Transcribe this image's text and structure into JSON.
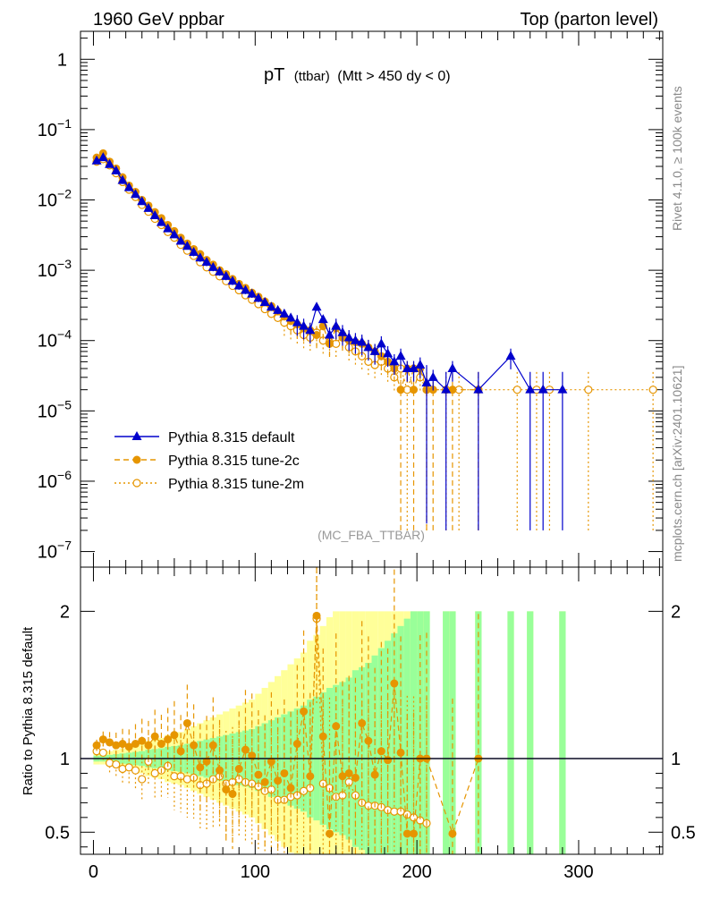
{
  "header": {
    "left": "1960 GeV ppbar",
    "right": "Top (parton level)"
  },
  "side_labels": {
    "rivet": "Rivet 4.1.0, ≥ 100k events",
    "mcplots": "mcplots.cern.ch [arXiv:2401.10621]"
  },
  "plot_title": {
    "main": "pT",
    "small": "(ttbar)",
    "cut": "(Mtt > 450 dy < 0)"
  },
  "watermark": "(MC_FBA_TTBAR)",
  "legend": [
    {
      "label": "Pythia 8.315 default",
      "color": "#0000cc",
      "style": "solid",
      "marker": "triangle"
    },
    {
      "label": "Pythia 8.315 tune-2c",
      "color": "#e69500",
      "style": "dashed",
      "marker": "filled-circle"
    },
    {
      "label": "Pythia 8.315 tune-2m",
      "color": "#e69500",
      "style": "dotted",
      "marker": "open-circle"
    }
  ],
  "colors": {
    "default": "#0000cc",
    "tune": "#e69500",
    "band_outer": "#ffff99",
    "band_inner": "#99ff99"
  },
  "chart_data": [
    {
      "type": "line",
      "title": "pT (ttbar) (Mtt > 450 dy < 0)",
      "xlim": [
        -8,
        352
      ],
      "ylim": [
        6e-08,
        2.5
      ],
      "yscale": "log",
      "y_ticks": [
        {
          "v": 1,
          "base": "1",
          "exp": ""
        },
        {
          "v": 0.1,
          "base": "10",
          "exp": "−1"
        },
        {
          "v": 0.01,
          "base": "10",
          "exp": "−2"
        },
        {
          "v": 0.001,
          "base": "10",
          "exp": "−3"
        },
        {
          "v": 0.0001,
          "base": "10",
          "exp": "−4"
        },
        {
          "v": 1e-05,
          "base": "10",
          "exp": "−5"
        },
        {
          "v": 1e-06,
          "base": "10",
          "exp": "−6"
        },
        {
          "v": 1e-07,
          "base": "10",
          "exp": "−7"
        }
      ],
      "series": [
        {
          "name": "Pythia 8.315 default",
          "x": [
            2,
            6,
            10,
            14,
            18,
            22,
            26,
            30,
            34,
            38,
            42,
            46,
            50,
            54,
            58,
            62,
            66,
            70,
            74,
            78,
            82,
            86,
            90,
            94,
            98,
            102,
            106,
            110,
            114,
            118,
            122,
            126,
            130,
            134,
            138,
            142,
            146,
            150,
            154,
            158,
            162,
            166,
            170,
            174,
            178,
            182,
            186,
            190,
            194,
            198,
            202,
            206,
            210,
            218,
            222,
            238,
            258,
            270,
            278,
            290
          ],
          "y": [
            0.036,
            0.04,
            0.032,
            0.026,
            0.019,
            0.015,
            0.012,
            0.0095,
            0.0076,
            0.006,
            0.0048,
            0.0039,
            0.0032,
            0.0026,
            0.0022,
            0.0018,
            0.0015,
            0.0013,
            0.0011,
            0.00095,
            0.00082,
            0.0007,
            0.0006,
            0.00052,
            0.00046,
            0.0004,
            0.00035,
            0.0003,
            0.00027,
            0.00024,
            0.00021,
            0.00018,
            0.00016,
            0.00014,
            0.0003,
            0.0002,
            0.00012,
            0.00016,
            0.00013,
            0.00011,
            0.0001,
            9.5e-05,
            8e-05,
            7e-05,
            9e-05,
            6.5e-05,
            5e-05,
            6e-05,
            4e-05,
            4e-05,
            4.5e-05,
            2.5e-05,
            3e-05,
            2e-05,
            4e-05,
            2e-05,
            6e-05,
            2e-05,
            2e-05,
            2e-05
          ]
        },
        {
          "name": "Pythia 8.315 tune-2c",
          "x": [
            2,
            6,
            10,
            14,
            18,
            22,
            26,
            30,
            34,
            38,
            42,
            46,
            50,
            54,
            58,
            62,
            66,
            70,
            74,
            78,
            82,
            86,
            90,
            94,
            98,
            102,
            106,
            110,
            114,
            118,
            122,
            126,
            130,
            134,
            138,
            142,
            146,
            150,
            154,
            158,
            162,
            166,
            170,
            174,
            178,
            182,
            186,
            190,
            194,
            198,
            202,
            206,
            210,
            222,
            238
          ],
          "y": [
            0.04,
            0.046,
            0.035,
            0.028,
            0.021,
            0.016,
            0.013,
            0.01,
            0.0083,
            0.0067,
            0.0055,
            0.0044,
            0.0036,
            0.0029,
            0.0024,
            0.002,
            0.0017,
            0.0014,
            0.0012,
            0.001,
            0.00088,
            0.00075,
            0.00064,
            0.00056,
            0.00048,
            0.00042,
            0.00036,
            0.00031,
            0.00026,
            0.00022,
            0.00019,
            0.00017,
            0.00015,
            0.00014,
            0.00012,
            0.00016,
            9e-05,
            0.00015,
            0.00011,
            0.0001,
            9.5e-05,
            9e-05,
            8e-05,
            7e-05,
            6e-05,
            5e-05,
            4e-05,
            2e-05,
            4e-05,
            2e-05,
            4e-05,
            2e-05,
            2e-05,
            2e-05,
            2e-05
          ]
        },
        {
          "name": "Pythia 8.315 tune-2m",
          "x": [
            2,
            6,
            10,
            14,
            18,
            22,
            26,
            30,
            34,
            38,
            42,
            46,
            50,
            54,
            58,
            62,
            66,
            70,
            74,
            78,
            82,
            86,
            90,
            94,
            98,
            102,
            106,
            110,
            114,
            118,
            122,
            126,
            130,
            134,
            138,
            142,
            146,
            150,
            154,
            158,
            162,
            166,
            170,
            174,
            178,
            182,
            186,
            190,
            194,
            198,
            202,
            206,
            218,
            226,
            238,
            262,
            274,
            282,
            306,
            346
          ],
          "y": [
            0.035,
            0.038,
            0.031,
            0.024,
            0.018,
            0.014,
            0.011,
            0.0085,
            0.0068,
            0.0054,
            0.0044,
            0.0035,
            0.0029,
            0.0023,
            0.0019,
            0.0016,
            0.0013,
            0.0011,
            0.00095,
            0.00082,
            0.0007,
            0.0006,
            0.00052,
            0.00044,
            0.00038,
            0.00033,
            0.00028,
            0.00024,
            0.00021,
            0.00018,
            0.00016,
            0.00014,
            0.00012,
            0.00011,
            0.00013,
            0.0001,
            9.5e-05,
            9e-05,
            0.00012,
            8e-05,
            7e-05,
            6e-05,
            5e-05,
            4.5e-05,
            5e-05,
            4e-05,
            3e-05,
            4e-05,
            2e-05,
            4e-05,
            3e-05,
            2e-05,
            2e-05,
            2e-05,
            2e-05,
            2e-05,
            2e-05,
            2e-05,
            2e-05,
            2e-05
          ]
        }
      ]
    },
    {
      "type": "line",
      "ylabel": "Ratio to Pythia 8.315 default",
      "xlim": [
        -8,
        352
      ],
      "ylim": [
        0.35,
        2.3
      ],
      "x_ticks": [
        0,
        100,
        200,
        300
      ],
      "y_ticks": [
        0.5,
        1,
        2
      ],
      "reference_line": 1,
      "bands": {
        "x": [
          2,
          6,
          10,
          14,
          18,
          22,
          26,
          30,
          34,
          38,
          42,
          46,
          50,
          54,
          58,
          62,
          66,
          70,
          74,
          78,
          82,
          86,
          90,
          94,
          98,
          102,
          106,
          110,
          114,
          118,
          122,
          126,
          130,
          134,
          138,
          142,
          146,
          150,
          154,
          158,
          162,
          166,
          170,
          174,
          178,
          182,
          186,
          190,
          194,
          198,
          202,
          206,
          218,
          222,
          238,
          258,
          270,
          290
        ],
        "inner": [
          0.02,
          0.02,
          0.025,
          0.03,
          0.035,
          0.04,
          0.045,
          0.05,
          0.06,
          0.065,
          0.07,
          0.08,
          0.085,
          0.09,
          0.1,
          0.11,
          0.12,
          0.13,
          0.14,
          0.15,
          0.16,
          0.17,
          0.18,
          0.19,
          0.2,
          0.22,
          0.24,
          0.26,
          0.28,
          0.3,
          0.32,
          0.34,
          0.36,
          0.4,
          0.42,
          0.45,
          0.48,
          0.5,
          0.52,
          0.55,
          0.6,
          0.62,
          0.65,
          0.7,
          0.75,
          0.8,
          0.85,
          0.9,
          0.95,
          1,
          1,
          1,
          1,
          1,
          1,
          1,
          1,
          1
        ],
        "outer": [
          0.04,
          0.04,
          0.05,
          0.06,
          0.07,
          0.08,
          0.09,
          0.1,
          0.12,
          0.13,
          0.14,
          0.16,
          0.17,
          0.18,
          0.2,
          0.22,
          0.24,
          0.26,
          0.28,
          0.3,
          0.32,
          0.34,
          0.36,
          0.38,
          0.4,
          0.44,
          0.48,
          0.52,
          0.56,
          0.6,
          0.64,
          0.68,
          0.72,
          0.8,
          0.84,
          0.9,
          0.96,
          1,
          1,
          1,
          1,
          1,
          1,
          1,
          1,
          1,
          1,
          1,
          1,
          1,
          1,
          1,
          1,
          1,
          1,
          1,
          1,
          1
        ]
      },
      "series": [
        {
          "name": "Pythia 8.315 tune-2c",
          "x": [
            2,
            6,
            10,
            14,
            18,
            22,
            26,
            30,
            34,
            38,
            42,
            46,
            50,
            54,
            58,
            62,
            66,
            70,
            74,
            78,
            82,
            86,
            90,
            94,
            98,
            102,
            106,
            110,
            114,
            118,
            122,
            126,
            130,
            134,
            138,
            142,
            146,
            150,
            154,
            158,
            162,
            166,
            170,
            174,
            178,
            182,
            186,
            190,
            194,
            198,
            202,
            206,
            222,
            238
          ],
          "y": [
            1.09,
            1.13,
            1.11,
            1.09,
            1.1,
            1.08,
            1.1,
            1.12,
            1.09,
            1.15,
            1.1,
            1.13,
            1.16,
            1.05,
            1.24,
            1.09,
            0.94,
            0.98,
            1.09,
            0.92,
            0.79,
            0.76,
            0.93,
            1.06,
            1.02,
            0.89,
            0.84,
            0.98,
            0.85,
            0.9,
            0.8,
            1.1,
            1.32,
            0.88,
            1.97,
            1.15,
            0.49,
            1.22,
            0.88,
            0.9,
            0.87,
            1.24,
            1.12,
            0.89,
            1.05,
            0.99,
            1.51,
            1.04,
            0.49,
            0.49,
            1.0,
            1.0,
            0.49,
            1.0
          ]
        },
        {
          "name": "Pythia 8.315 tune-2m",
          "x": [
            2,
            6,
            10,
            14,
            18,
            22,
            26,
            30,
            34,
            38,
            42,
            46,
            50,
            54,
            58,
            62,
            66,
            70,
            74,
            78,
            82,
            86,
            90,
            94,
            98,
            102,
            106,
            110,
            114,
            118,
            122,
            126,
            130,
            134,
            138,
            142,
            146,
            150,
            154,
            158,
            162,
            166,
            170,
            174,
            178,
            182,
            186,
            190,
            194,
            198,
            202,
            206
          ],
          "y": [
            1.05,
            1.04,
            0.97,
            0.96,
            0.93,
            0.94,
            0.92,
            0.86,
            0.98,
            0.9,
            0.92,
            0.95,
            0.88,
            0.88,
            0.86,
            0.87,
            0.82,
            0.83,
            0.86,
            0.88,
            0.83,
            0.84,
            0.86,
            0.84,
            0.83,
            0.81,
            0.78,
            0.79,
            0.72,
            0.72,
            0.74,
            0.75,
            0.78,
            0.8,
            1.95,
            0.83,
            0.8,
            0.74,
            0.75,
            0.84,
            0.75,
            0.7,
            0.68,
            0.68,
            0.67,
            0.65,
            0.64,
            0.64,
            0.62,
            0.6,
            0.58,
            0.56
          ]
        }
      ]
    }
  ]
}
